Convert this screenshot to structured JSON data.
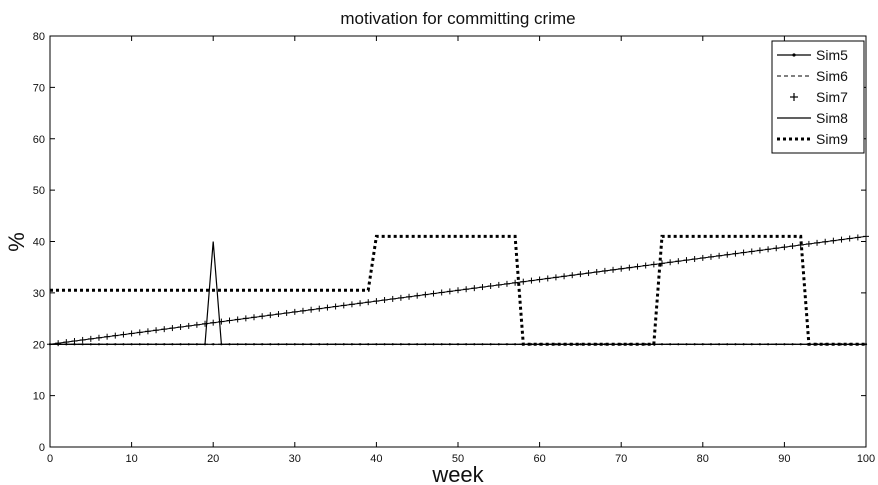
{
  "chart_data": {
    "type": "line",
    "title": "motivation for committing crime",
    "xlabel": "week",
    "ylabel": "%",
    "xlim": [
      0,
      100
    ],
    "ylim": [
      0,
      80
    ],
    "xticks": [
      0,
      10,
      20,
      30,
      40,
      50,
      60,
      70,
      80,
      90,
      100
    ],
    "yticks": [
      0,
      10,
      20,
      30,
      40,
      50,
      60,
      70,
      80
    ],
    "grid": false,
    "legend_position": "top-right",
    "series": [
      {
        "name": "Sim5",
        "style": "solid-dot-markers",
        "color": "#000000",
        "x": [
          0,
          100
        ],
        "y": [
          20,
          20
        ]
      },
      {
        "name": "Sim6",
        "style": "dashed",
        "color": "#000000",
        "x": [
          0,
          100
        ],
        "y": [
          20,
          20
        ]
      },
      {
        "name": "Sim7",
        "style": "plus-markers",
        "color": "#000000",
        "x": [
          0,
          100
        ],
        "y": [
          20,
          41
        ]
      },
      {
        "name": "Sim8",
        "style": "solid",
        "color": "#000000",
        "x": [
          0,
          19,
          20,
          21,
          100
        ],
        "y": [
          20,
          20,
          40,
          20,
          20
        ]
      },
      {
        "name": "Sim9",
        "style": "thick-dotted",
        "color": "#000000",
        "x": [
          0,
          39,
          40,
          57,
          58,
          74,
          75,
          92,
          93,
          100
        ],
        "y": [
          30.5,
          30.5,
          41,
          41,
          20,
          20,
          41,
          41,
          20,
          20
        ]
      }
    ]
  }
}
